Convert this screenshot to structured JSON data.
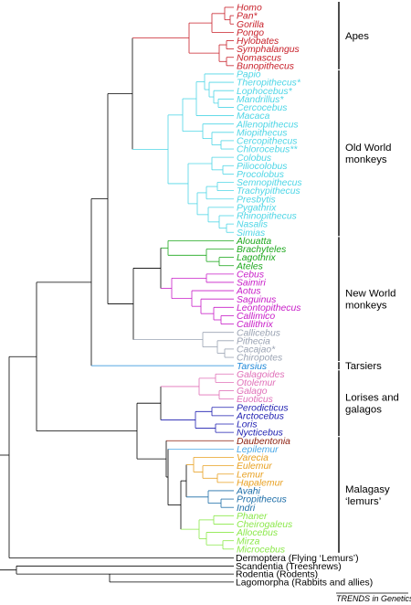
{
  "colors": {
    "apes": "#c8202a",
    "old_world_monkeys": "#4fd6e6",
    "platyrrhine_green": "#1ea81e",
    "platyrrhine_magenta": "#c81ec8",
    "platyrrhine_grey": "#9aa3b3",
    "tarsiers": "#1e88d8",
    "galagos": "#e070b8",
    "lorises": "#1e1eb0",
    "daubentonia": "#8b1c0c",
    "lepilemur": "#4aa8e8",
    "lemurids": "#e8a020",
    "indriids": "#1e6ea8",
    "cheirogaleids": "#8be84a",
    "backbone": "#000000"
  },
  "taxa": [
    {
      "name": "Homo",
      "color": "apes"
    },
    {
      "name": "Pan*",
      "color": "apes"
    },
    {
      "name": "Gorilla",
      "color": "apes"
    },
    {
      "name": "Pongo",
      "color": "apes"
    },
    {
      "name": "Hylobates",
      "color": "apes"
    },
    {
      "name": "Symphalangus",
      "color": "apes"
    },
    {
      "name": "Nomascus",
      "color": "apes"
    },
    {
      "name": "Bunopithecus",
      "color": "apes"
    },
    {
      "name": "Papio",
      "color": "old_world_monkeys"
    },
    {
      "name": "Theropithecus*",
      "color": "old_world_monkeys"
    },
    {
      "name": "Lophocebus*",
      "color": "old_world_monkeys"
    },
    {
      "name": "Mandrillus*",
      "color": "old_world_monkeys"
    },
    {
      "name": "Cercocebus",
      "color": "old_world_monkeys"
    },
    {
      "name": "Macaca",
      "color": "old_world_monkeys"
    },
    {
      "name": "Allenopithecus",
      "color": "old_world_monkeys"
    },
    {
      "name": "Miopithecus",
      "color": "old_world_monkeys"
    },
    {
      "name": "Cercopithecus",
      "color": "old_world_monkeys"
    },
    {
      "name": "Chlorocebus**",
      "color": "old_world_monkeys"
    },
    {
      "name": "Colobus",
      "color": "old_world_monkeys"
    },
    {
      "name": "Piliocolobus",
      "color": "old_world_monkeys"
    },
    {
      "name": "Procolobus",
      "color": "old_world_monkeys"
    },
    {
      "name": "Semnopithecus",
      "color": "old_world_monkeys"
    },
    {
      "name": "Trachypithecus",
      "color": "old_world_monkeys"
    },
    {
      "name": "Presbytis",
      "color": "old_world_monkeys"
    },
    {
      "name": "Pygathrix",
      "color": "old_world_monkeys"
    },
    {
      "name": "Rhinopithecus",
      "color": "old_world_monkeys"
    },
    {
      "name": "Nasalis",
      "color": "old_world_monkeys"
    },
    {
      "name": "Simias",
      "color": "old_world_monkeys"
    },
    {
      "name": "Alouatta",
      "color": "platyrrhine_green"
    },
    {
      "name": "Brachyteles",
      "color": "platyrrhine_green"
    },
    {
      "name": "Lagothrix",
      "color": "platyrrhine_green"
    },
    {
      "name": "Ateles",
      "color": "platyrrhine_green"
    },
    {
      "name": "Cebus",
      "color": "platyrrhine_magenta"
    },
    {
      "name": "Saimiri",
      "color": "platyrrhine_magenta"
    },
    {
      "name": "Aotus",
      "color": "platyrrhine_magenta"
    },
    {
      "name": "Saguinus",
      "color": "platyrrhine_magenta"
    },
    {
      "name": "Leontopithecus",
      "color": "platyrrhine_magenta"
    },
    {
      "name": "Callimico",
      "color": "platyrrhine_magenta"
    },
    {
      "name": "Callithrix",
      "color": "platyrrhine_magenta"
    },
    {
      "name": "Callicebus",
      "color": "platyrrhine_grey"
    },
    {
      "name": "Pithecia",
      "color": "platyrrhine_grey"
    },
    {
      "name": "Cacajao*",
      "color": "platyrrhine_grey"
    },
    {
      "name": "Chiropotes",
      "color": "platyrrhine_grey"
    },
    {
      "name": "Tarsius",
      "color": "tarsiers"
    },
    {
      "name": "Galagoides",
      "color": "galagos"
    },
    {
      "name": "Otolemur",
      "color": "galagos"
    },
    {
      "name": "Galago",
      "color": "galagos"
    },
    {
      "name": "Euoticus",
      "color": "galagos"
    },
    {
      "name": "Perodicticus",
      "color": "lorises"
    },
    {
      "name": "Arctocebus",
      "color": "lorises"
    },
    {
      "name": "Loris",
      "color": "lorises"
    },
    {
      "name": "Nycticebus",
      "color": "lorises"
    },
    {
      "name": "Daubentonia",
      "color": "daubentonia"
    },
    {
      "name": "Lepilemur",
      "color": "lepilemur"
    },
    {
      "name": "Varecia",
      "color": "lemurids"
    },
    {
      "name": "Eulemur",
      "color": "lemurids"
    },
    {
      "name": "Lemur",
      "color": "lemurids"
    },
    {
      "name": "Hapalemur",
      "color": "lemurids"
    },
    {
      "name": "Avahi",
      "color": "indriids"
    },
    {
      "name": "Propithecus",
      "color": "indriids"
    },
    {
      "name": "Indri",
      "color": "indriids"
    },
    {
      "name": "Phaner",
      "color": "cheirogaleids"
    },
    {
      "name": "Cheirogaleus",
      "color": "cheirogaleids"
    },
    {
      "name": "Allocebus",
      "color": "cheirogaleids"
    },
    {
      "name": "Mirza",
      "color": "cheirogaleids"
    },
    {
      "name": "Microcebus",
      "color": "cheirogaleids"
    }
  ],
  "outgroups": [
    "Dermoptera (Flying ‘Lemurs’)",
    "Scandentia (Treeshrews)",
    "Rodentia (Rodents)",
    "Lagomorpha (Rabbits and allies)"
  ],
  "groups": [
    {
      "lines": [
        "Apes"
      ]
    },
    {
      "lines": [
        "Old World",
        "monkeys"
      ]
    },
    {
      "lines": [
        "New World",
        "monkeys"
      ]
    },
    {
      "lines": [
        "Tarsiers"
      ]
    },
    {
      "lines": [
        "Lorises and",
        "galagos"
      ]
    },
    {
      "lines": [
        "Malagasy",
        "‘lemurs’"
      ]
    }
  ],
  "footer": "TRENDS in Genetics"
}
